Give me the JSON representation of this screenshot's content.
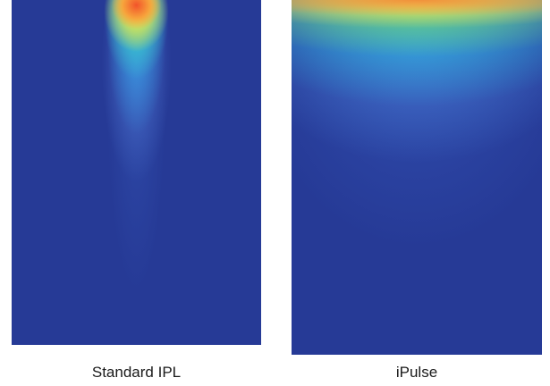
{
  "panels": [
    {
      "caption": "Standard IPL"
    },
    {
      "caption": "iPulse"
    }
  ]
}
